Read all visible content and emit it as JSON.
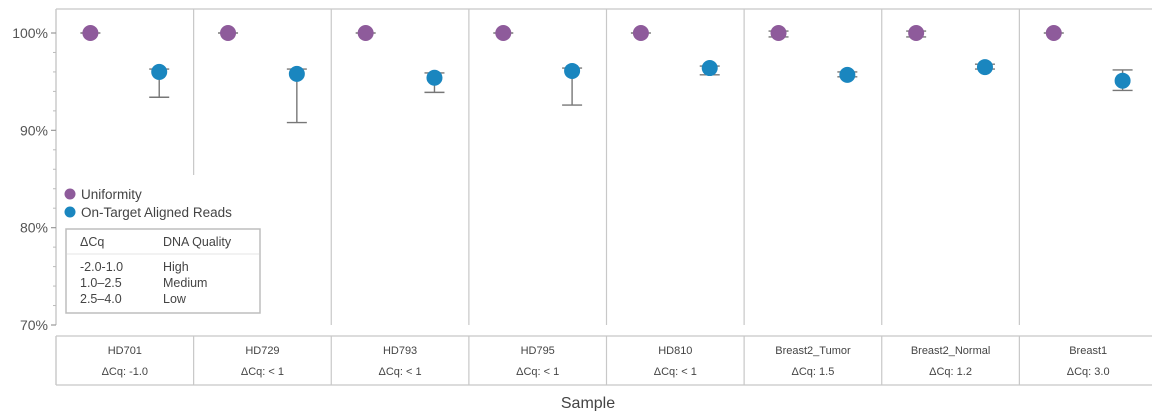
{
  "chart_data": {
    "type": "scatter",
    "xlabel": "Sample",
    "ylabel": "",
    "ylim": [
      70,
      100
    ],
    "yticks": [
      "70%",
      "80%",
      "90%",
      "100%"
    ],
    "yticks_values": [
      70,
      80,
      90,
      100
    ],
    "categories": [
      "HD701",
      "HD729",
      "HD793",
      "HD795",
      "HD810",
      "Breast2_Tumor",
      "Breast2_Normal",
      "Breast1"
    ],
    "sublabels": [
      "ΔCq: -1.0",
      "ΔCq: < 1",
      "ΔCq: < 1",
      "ΔCq: < 1",
      "ΔCq: < 1",
      "ΔCq: 1.5",
      "ΔCq: 1.2",
      "ΔCq: 3.0"
    ],
    "series": [
      {
        "name": "Uniformity",
        "color": "#8e5b9b",
        "values": [
          100,
          100,
          100,
          100,
          100,
          100,
          100,
          100
        ],
        "err_low": [
          100,
          100,
          100,
          100,
          100,
          99.6,
          99.6,
          100
        ],
        "err_high": [
          100,
          100,
          100,
          100,
          100,
          100.2,
          100.2,
          100
        ]
      },
      {
        "name": "On-Target Aligned Reads",
        "color": "#1a86bf",
        "values": [
          96.0,
          95.8,
          95.4,
          96.1,
          96.4,
          95.7,
          96.5,
          95.1
        ],
        "err_low": [
          93.4,
          90.8,
          93.9,
          92.6,
          95.7,
          95.5,
          96.3,
          94.1
        ],
        "err_high": [
          96.3,
          96.3,
          95.9,
          96.4,
          96.6,
          96.0,
          96.8,
          96.2
        ]
      }
    ],
    "legend_position": "bottom-left",
    "grid": false
  },
  "legend": {
    "items": [
      {
        "label": "Uniformity",
        "color": "#8e5b9b"
      },
      {
        "label": "On-Target Aligned Reads",
        "color": "#1a86bf"
      }
    ]
  },
  "quality_table": {
    "header": [
      "ΔCq",
      "DNA Quality"
    ],
    "rows": [
      [
        "-2.0-1.0",
        "High"
      ],
      [
        "1.0–2.5",
        "Medium"
      ],
      [
        "2.5–4.0",
        "Low"
      ]
    ]
  }
}
